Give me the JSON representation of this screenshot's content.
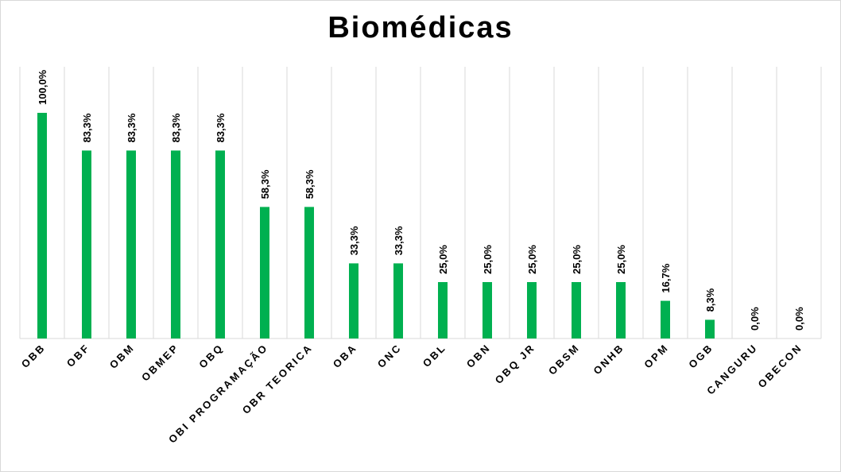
{
  "chart_data": {
    "type": "bar",
    "title": "Biomédicas",
    "categories": [
      "OBB",
      "OBF",
      "OBM",
      "OBMEP",
      "OBQ",
      "OBI PROGRAMAÇÃO",
      "OBR TEORICA",
      "OBA",
      "ONC",
      "OBL",
      "OBN",
      "OBQ JR",
      "OBSM",
      "ONHB",
      "OPM",
      "OGB",
      "CANGURU",
      "OBECON"
    ],
    "values": [
      100.0,
      83.3,
      83.3,
      83.3,
      83.3,
      58.3,
      58.3,
      33.3,
      33.3,
      25.0,
      25.0,
      25.0,
      25.0,
      25.0,
      16.7,
      8.3,
      0.0,
      0.0
    ],
    "data_labels": [
      "100,0%",
      "83,3%",
      "83,3%",
      "83,3%",
      "83,3%",
      "58,3%",
      "58,3%",
      "33,3%",
      "33,3%",
      "25,0%",
      "25,0%",
      "25,0%",
      "25,0%",
      "25,0%",
      "16,7%",
      "8,3%",
      "0,0%",
      "0,0%"
    ],
    "xlabel": "",
    "ylabel": "",
    "ylim": [
      0,
      120
    ],
    "bar_color": "#00b050",
    "grid_color": "#d9d9d9",
    "grid": "vertical category separators",
    "legend": "none"
  }
}
